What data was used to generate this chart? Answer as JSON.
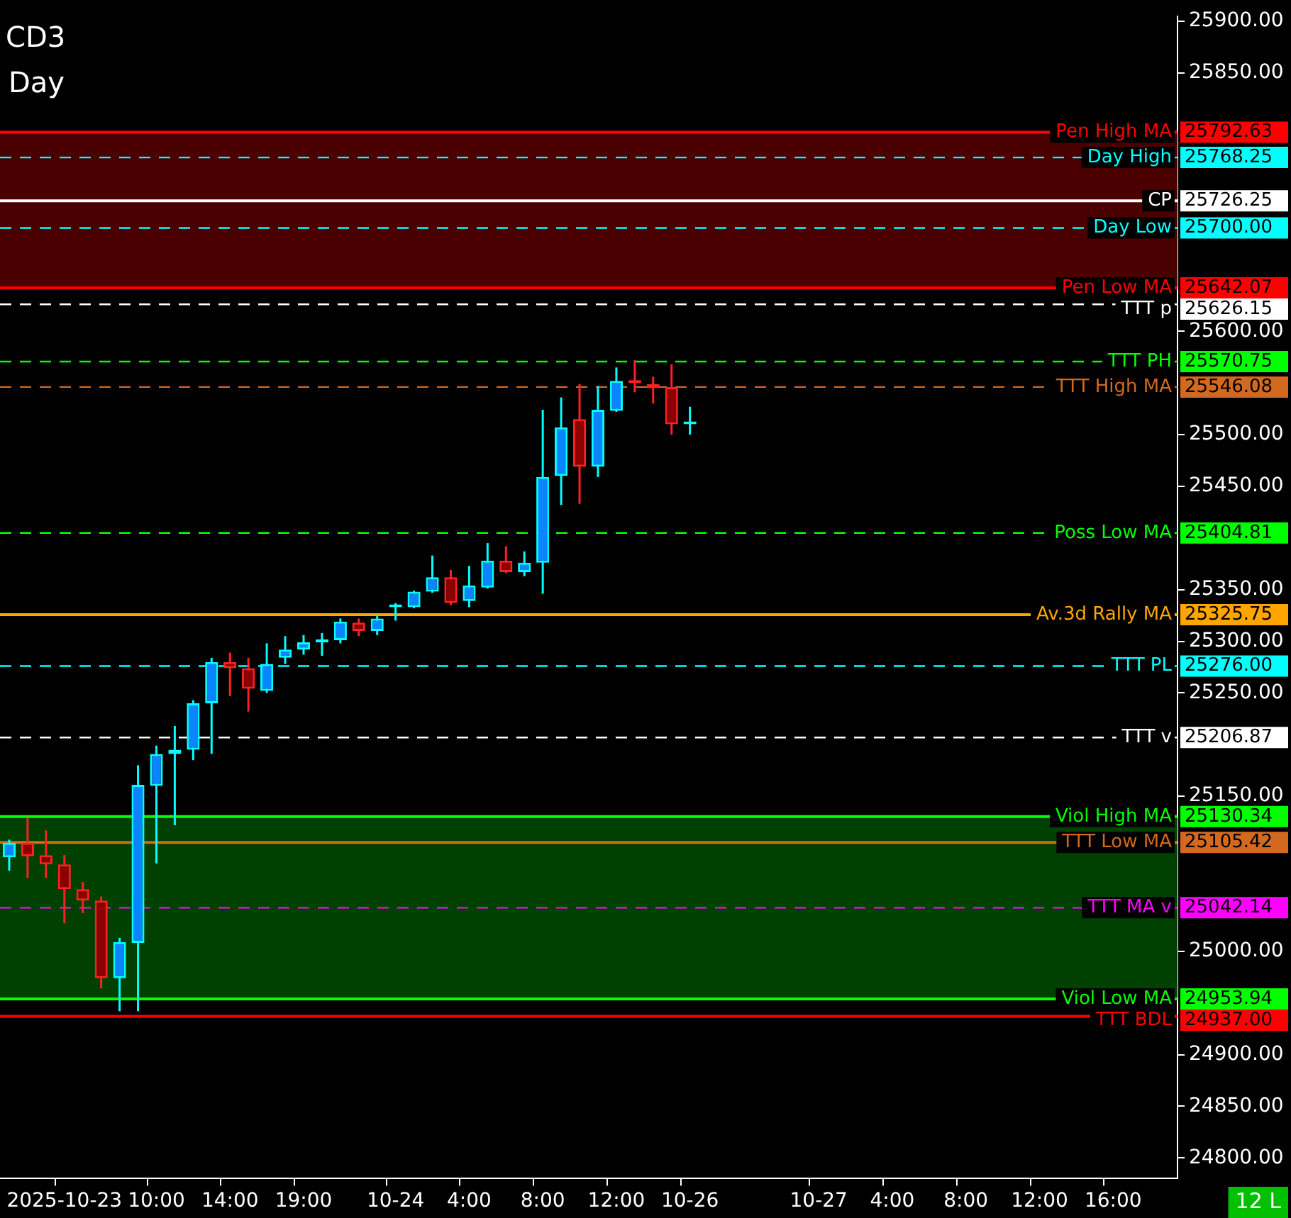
{
  "chart_data": {
    "type": "candlestick",
    "title": "CD3",
    "subtitle": "Day",
    "categories": [
      null,
      null,
      null,
      "2025-10-23",
      null,
      null,
      null,
      null,
      "10:00",
      null,
      null,
      null,
      "14:00",
      null,
      null,
      null,
      "19:00",
      null,
      null,
      null,
      null,
      "10-24",
      null,
      null,
      null,
      "4:00",
      null,
      null,
      null,
      "8:00",
      null,
      null,
      null,
      "12:00",
      null,
      null,
      null,
      "10-26",
      null,
      null,
      null,
      null,
      null,
      null,
      "10-27",
      null,
      null,
      null,
      "4:00",
      null,
      null,
      null,
      "8:00",
      null,
      null,
      null,
      "12:00",
      null,
      null,
      null,
      "16:00",
      null,
      null,
      null
    ],
    "ohlc": [
      [
        25091,
        25108,
        25078,
        25105
      ],
      [
        25105,
        25129,
        25071,
        25092
      ],
      [
        25093,
        25117,
        25071,
        25084
      ],
      [
        25084,
        25093,
        25027,
        25060
      ],
      [
        25060,
        25067,
        25037,
        25049
      ],
      [
        25049,
        25053,
        24964,
        24974
      ],
      [
        24974,
        25013,
        24942,
        25009
      ],
      [
        25008,
        25180,
        24942,
        25161
      ],
      [
        25160,
        25199,
        25085,
        25191
      ],
      [
        25191,
        25218,
        25122,
        25195
      ],
      [
        25195,
        25243,
        25185,
        25240
      ],
      [
        25240,
        25284,
        25191,
        25280
      ],
      [
        25280,
        25289,
        25247,
        25274
      ],
      [
        25274,
        25284,
        25232,
        25254
      ],
      [
        25252,
        25298,
        25250,
        25278
      ],
      [
        25284,
        25305,
        25278,
        25292
      ],
      [
        25292,
        25306,
        25287,
        25299
      ],
      [
        25299,
        25308,
        25286,
        25302
      ],
      [
        25301,
        25322,
        25298,
        25319
      ],
      [
        25318,
        25322,
        25305,
        25310
      ],
      [
        25310,
        25325,
        25306,
        25322
      ],
      [
        25333,
        25337,
        25320,
        25335
      ],
      [
        25333,
        25349,
        25332,
        25348
      ],
      [
        25348,
        25383,
        25347,
        25362
      ],
      [
        25362,
        25369,
        25335,
        25337
      ],
      [
        25339,
        25373,
        25333,
        25354
      ],
      [
        25352,
        25395,
        25351,
        25378
      ],
      [
        25378,
        25392,
        25366,
        25367
      ],
      [
        25367,
        25387,
        25363,
        25376
      ],
      [
        25376,
        25524,
        25346,
        25459
      ],
      [
        25460,
        25536,
        25432,
        25507
      ],
      [
        25515,
        25549,
        25433,
        25469
      ],
      [
        25469,
        25547,
        25459,
        25524
      ],
      [
        25523,
        25565,
        25522,
        25552
      ],
      [
        25552,
        25572,
        25541,
        25550
      ],
      [
        25549,
        25556,
        25530,
        25545
      ],
      [
        25546,
        25568,
        25500,
        25510
      ],
      [
        25510,
        25527,
        25500,
        25511
      ],
      null,
      null,
      null,
      null,
      null,
      null,
      null,
      null,
      null,
      null,
      null,
      null,
      null,
      null,
      null,
      null,
      null,
      null,
      null,
      null,
      null,
      null,
      null,
      null,
      null,
      null
    ],
    "ylim": [
      24780,
      25905
    ],
    "yticks": [
      {
        "value": 24800,
        "label": "24800.00"
      },
      {
        "value": 24850,
        "label": "24850.00"
      },
      {
        "value": 24900,
        "label": "24900.00"
      },
      {
        "value": 25000,
        "label": "25000.00"
      },
      {
        "value": 25150,
        "label": "25150.00"
      },
      {
        "value": 25250,
        "label": "25250.00"
      },
      {
        "value": 25300,
        "label": "25300.00"
      },
      {
        "value": 25350,
        "label": "25350.00"
      },
      {
        "value": 25450,
        "label": "25450.00"
      },
      {
        "value": 25500,
        "label": "25500.00"
      },
      {
        "value": 25600,
        "label": "25600.00"
      },
      {
        "value": 25850,
        "label": "25850.00"
      },
      {
        "value": 25900,
        "label": "25900.00"
      }
    ],
    "bands": [
      {
        "axis": "y",
        "from": 25642.07,
        "to": 25792.63,
        "color": "#4a0000"
      },
      {
        "axis": "y",
        "from": 24953.94,
        "to": 25130.34,
        "color": "#004000"
      }
    ],
    "ref_lines": [
      {
        "axis": "y",
        "value": 25792.63,
        "label": "Pen High MA",
        "color": "#ff0000",
        "line_style": "solid"
      },
      {
        "axis": "y",
        "value": 25768.25,
        "label": "Day High",
        "color": "#00ffff",
        "line_style": "dashed"
      },
      {
        "axis": "y",
        "value": 25726.25,
        "label": "CP",
        "color": "#ffffff",
        "line_style": "solid"
      },
      {
        "axis": "y",
        "value": 25700.0,
        "label": "Day Low",
        "color": "#00ffff",
        "line_style": "dashed"
      },
      {
        "axis": "y",
        "value": 25642.07,
        "label": "Pen Low MA",
        "color": "#ff0000",
        "line_style": "solid"
      },
      {
        "axis": "y",
        "value": 25626.15,
        "label": "TTT p",
        "color": "#ffffff",
        "line_style": "dashed"
      },
      {
        "axis": "y",
        "value": 25570.75,
        "label": "TTT PH",
        "color": "#00ff00",
        "line_style": "dashed"
      },
      {
        "axis": "y",
        "value": 25546.08,
        "label": "TTT High MA",
        "color": "#d2691e",
        "line_style": "dashed"
      },
      {
        "axis": "y",
        "value": 25404.81,
        "label": "Poss Low MA",
        "color": "#00ff00",
        "line_style": "dashed"
      },
      {
        "axis": "y",
        "value": 25325.75,
        "label": "Av.3d Rally MA",
        "color": "#ffa500",
        "line_style": "solid"
      },
      {
        "axis": "y",
        "value": 25276.0,
        "label": "TTT PL",
        "color": "#00ffff",
        "line_style": "dashed"
      },
      {
        "axis": "y",
        "value": 25206.87,
        "label": "TTT v",
        "color": "#ffffff",
        "line_style": "dashed"
      },
      {
        "axis": "y",
        "value": 25130.34,
        "label": "Viol High MA",
        "color": "#00ff00",
        "line_style": "solid"
      },
      {
        "axis": "y",
        "value": 25105.42,
        "label": "TTT Low MA",
        "color": "#d2691e",
        "line_style": "solid"
      },
      {
        "axis": "y",
        "value": 25042.14,
        "label": "TTT MA v",
        "color": "#ff00ff",
        "line_style": "dashed"
      },
      {
        "axis": "y",
        "value": 24953.94,
        "label": "Viol Low MA",
        "color": "#00ff00",
        "line_style": "solid"
      },
      {
        "axis": "y",
        "value": 24937.0,
        "label": "TTT BDL",
        "color": "#ff0000",
        "line_style": "solid"
      }
    ],
    "annotations": [
      "12 L",
      "25792.63",
      "25768.25",
      "25726.25",
      "25700.00",
      "25642.07",
      "25626.15",
      "25570.75",
      "25546.08",
      "25404.81",
      "25325.75",
      "25276.00",
      "25206.87",
      "25130.34",
      "25105.42",
      "25042.14",
      "24953.94",
      "24937.00"
    ],
    "grid": false,
    "legend": false
  }
}
